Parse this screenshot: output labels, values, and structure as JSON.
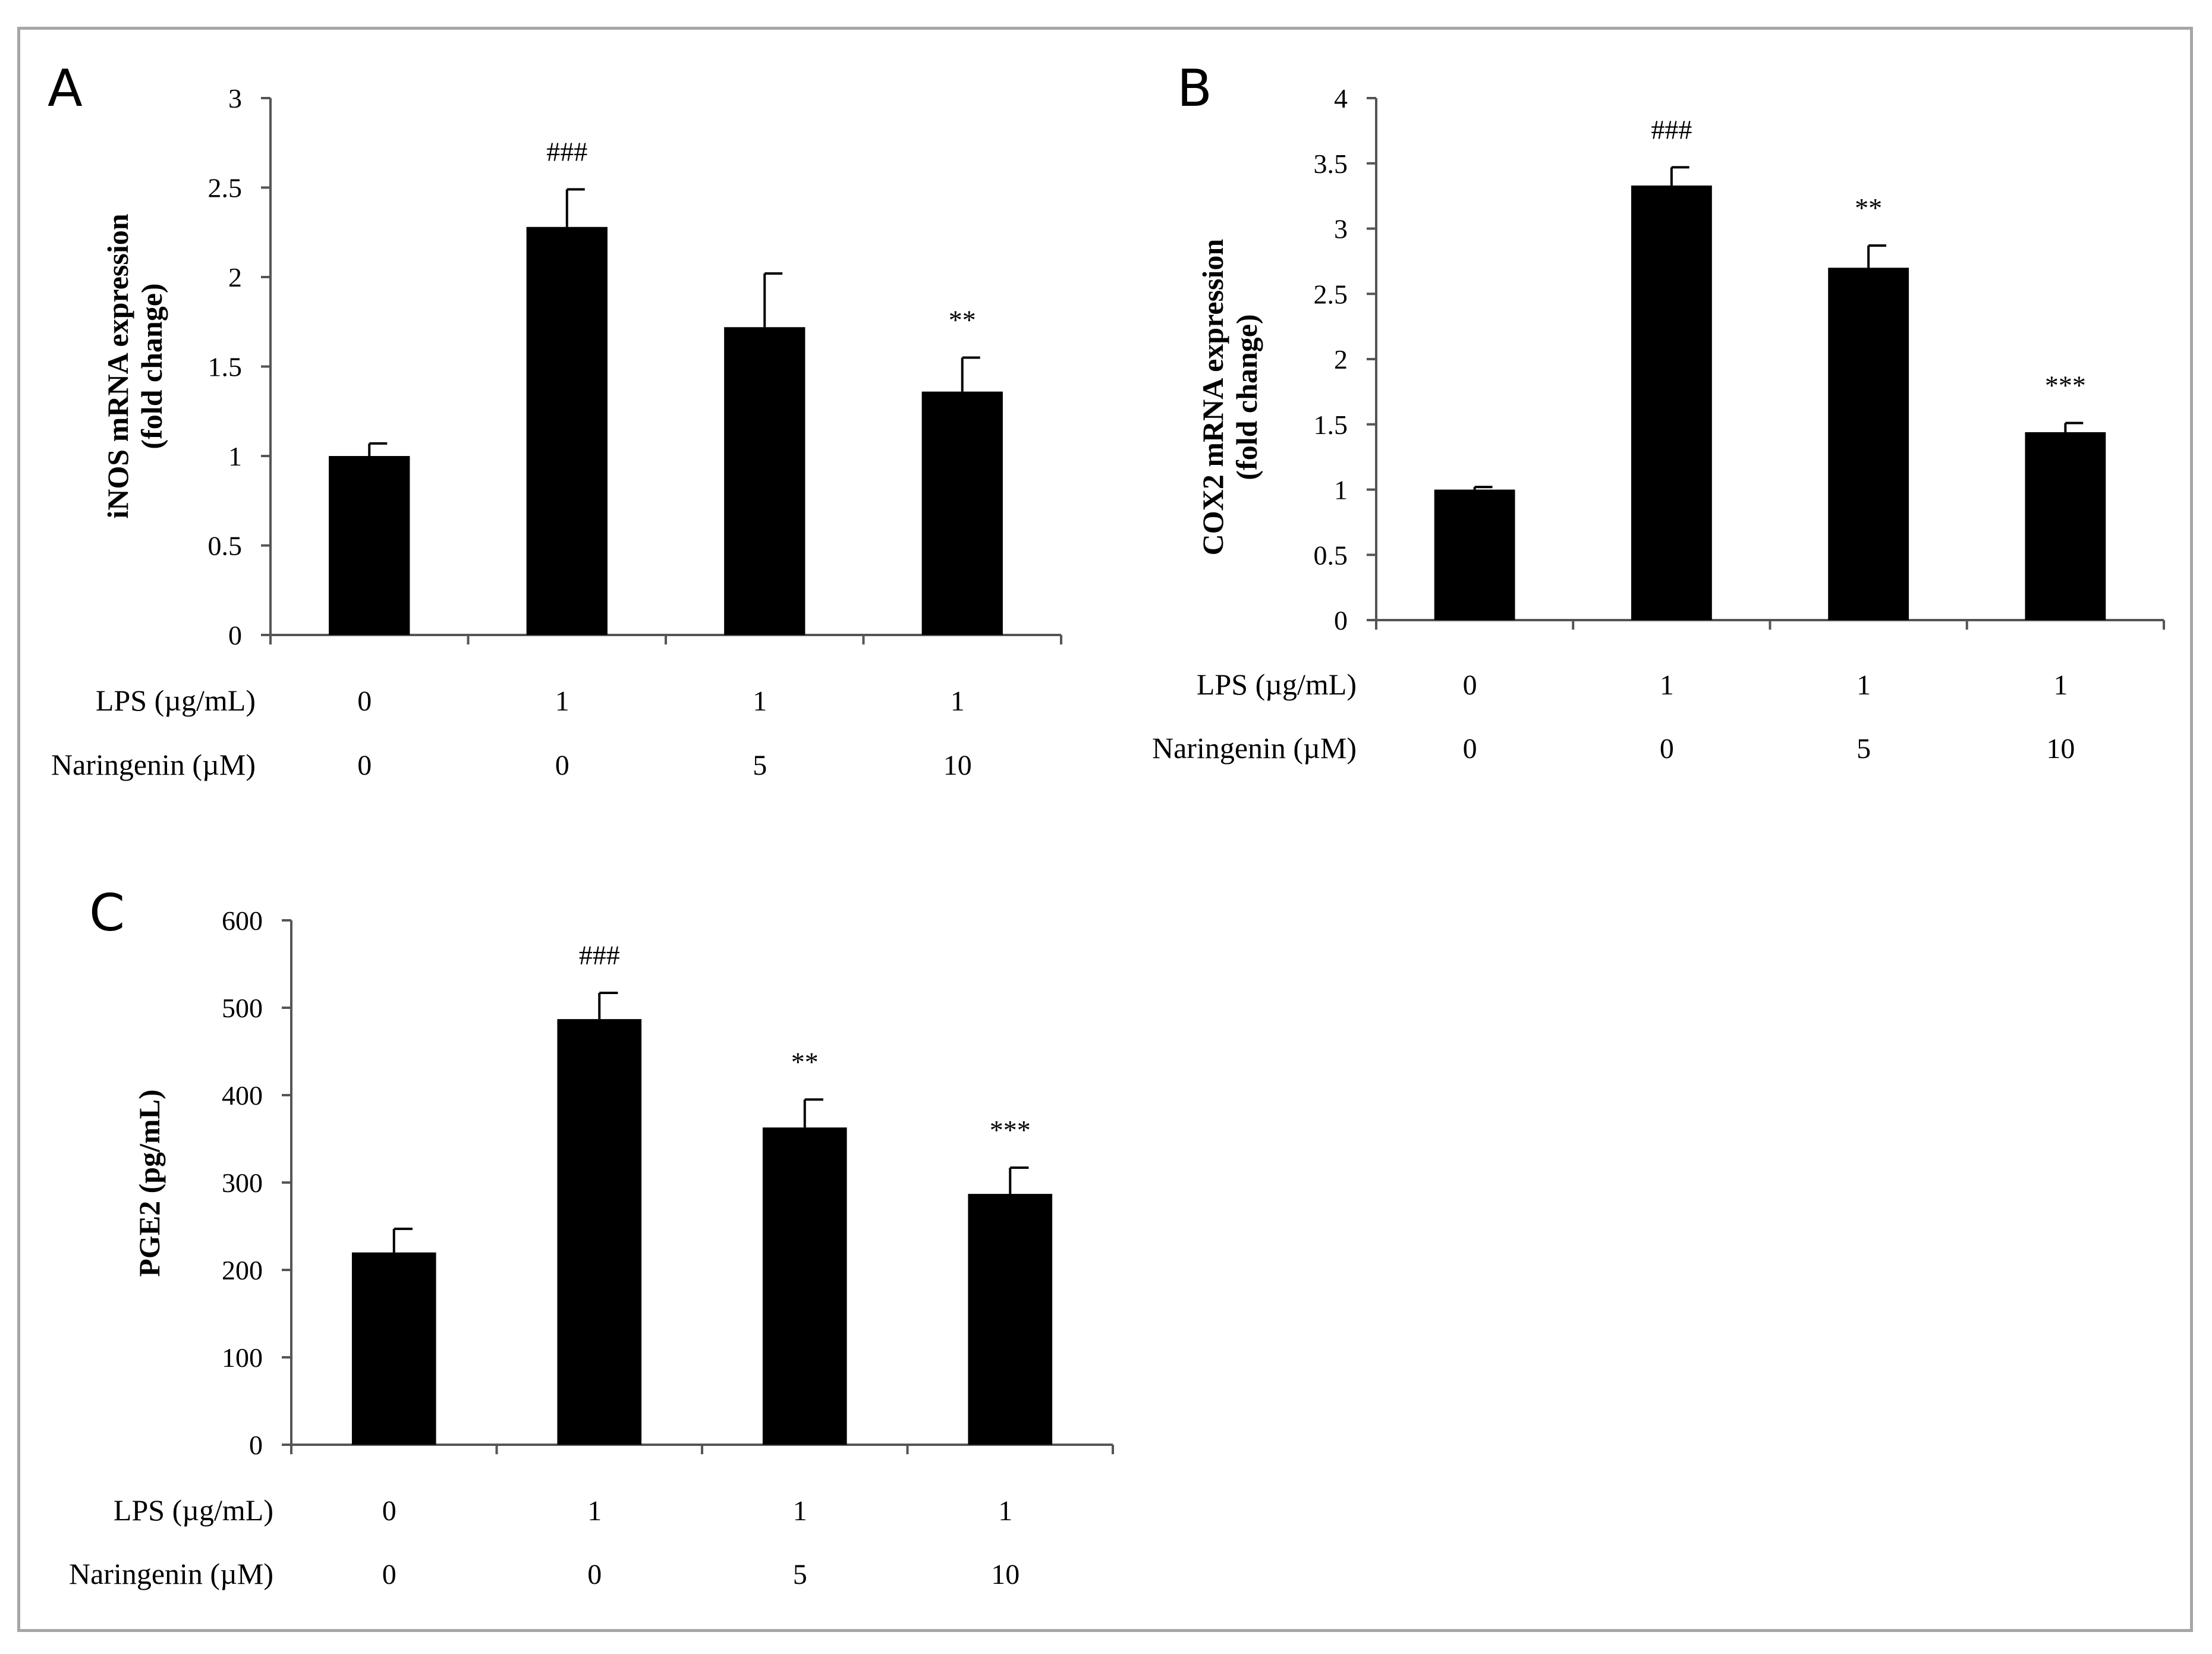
{
  "chart_data": [
    {
      "panel_label": "A",
      "type": "bar",
      "ylabel_line1": "iNOS mRNA expression",
      "ylabel_line2": "(fold change)",
      "ylim": [
        0,
        3
      ],
      "yticks": [
        0,
        0.5,
        1,
        1.5,
        2,
        2.5,
        3
      ],
      "ytick_labels": [
        "0",
        "0.5",
        "1",
        "1.5",
        "2",
        "2.5",
        "3"
      ],
      "values": [
        1.0,
        2.28,
        1.72,
        1.36
      ],
      "errors": [
        0.07,
        0.21,
        0.3,
        0.19
      ],
      "annotations": [
        "",
        "###",
        "",
        "**"
      ],
      "row_labels": [
        "LPS (µg/mL)",
        "Naringenin (µM)"
      ],
      "rows": [
        [
          "0",
          "1",
          "1",
          "1"
        ],
        [
          "0",
          "0",
          "5",
          "10"
        ]
      ],
      "bar_color": "#000000"
    },
    {
      "panel_label": "B",
      "type": "bar",
      "ylabel_line1": "COX2 mRNA expression",
      "ylabel_line2": "(fold change)",
      "ylim": [
        0,
        4
      ],
      "yticks": [
        0,
        0.5,
        1,
        1.5,
        2,
        2.5,
        3,
        3.5,
        4
      ],
      "ytick_labels": [
        "0",
        "0.5",
        "1",
        "1.5",
        "2",
        "2.5",
        "3",
        "3.5",
        "4"
      ],
      "values": [
        1.0,
        3.33,
        2.7,
        1.44
      ],
      "errors": [
        0.02,
        0.14,
        0.17,
        0.07
      ],
      "annotations": [
        "",
        "###",
        "**",
        "***"
      ],
      "row_labels": [
        "LPS (µg/mL)",
        "Naringenin (µM)"
      ],
      "rows": [
        [
          "0",
          "1",
          "1",
          "1"
        ],
        [
          "0",
          "0",
          "5",
          "10"
        ]
      ],
      "bar_color": "#000000"
    },
    {
      "panel_label": "C",
      "type": "bar",
      "ylabel_line1": "PGE2 (pg/mL)",
      "ylabel_line2": "",
      "ylim": [
        0,
        600
      ],
      "yticks": [
        0,
        100,
        200,
        300,
        400,
        500,
        600
      ],
      "ytick_labels": [
        "0",
        "100",
        "200",
        "300",
        "400",
        "500",
        "600"
      ],
      "values": [
        220,
        487,
        363,
        287
      ],
      "errors": [
        27,
        30,
        32,
        30
      ],
      "annotations": [
        "",
        "###",
        "**",
        "***"
      ],
      "row_labels": [
        "LPS (µg/mL)",
        "Naringenin (µM)"
      ],
      "rows": [
        [
          "0",
          "1",
          "1",
          "1"
        ],
        [
          "0",
          "0",
          "5",
          "10"
        ]
      ],
      "bar_color": "#000000"
    }
  ]
}
